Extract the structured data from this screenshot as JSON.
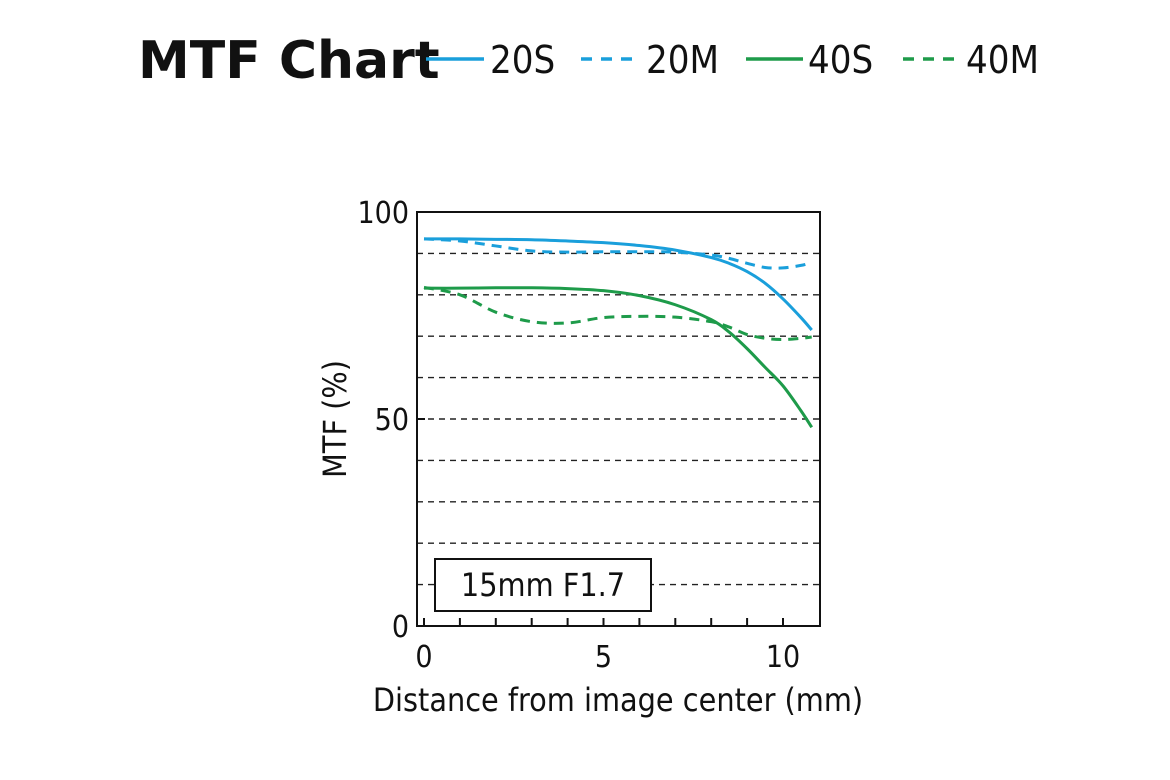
{
  "chart_data": {
    "type": "line",
    "title": "MTF Chart",
    "xlabel": "Distance from image center (mm)",
    "ylabel": "MTF (%)",
    "xlim": [
      0,
      10.8
    ],
    "ylim": [
      0,
      100
    ],
    "xticks": [
      0,
      5,
      10
    ],
    "yticks": [
      0,
      50,
      100
    ],
    "minor_xticks": [
      1,
      2,
      3,
      4,
      6,
      7,
      8,
      9
    ],
    "grid_y": [
      10,
      20,
      30,
      40,
      50,
      60,
      70,
      80,
      90
    ],
    "grid": "horizontal-dashed",
    "legend_position": "top",
    "annotation": "15mm F1.7",
    "series": [
      {
        "name": "20S",
        "color": "#1a9fdb",
        "dashed": false,
        "x": [
          0,
          1,
          2,
          3,
          4,
          5,
          6,
          7,
          8,
          8.5,
          9,
          9.5,
          10,
          10.5,
          10.8
        ],
        "y": [
          93.5,
          93.5,
          93.4,
          93.3,
          93.0,
          92.6,
          91.9,
          90.8,
          89.0,
          87.6,
          85.6,
          82.8,
          79.0,
          74.5,
          71.5
        ]
      },
      {
        "name": "20M",
        "color": "#1a9fdb",
        "dashed": true,
        "x": [
          0,
          1,
          2,
          3,
          4,
          5,
          6,
          7,
          8,
          8.5,
          9,
          9.5,
          10,
          10.5,
          10.8
        ],
        "y": [
          93.5,
          93.0,
          91.8,
          90.6,
          90.3,
          90.4,
          90.4,
          90.3,
          89.6,
          88.8,
          87.6,
          86.6,
          86.5,
          87.1,
          87.8
        ]
      },
      {
        "name": "40S",
        "color": "#1e9b4a",
        "dashed": false,
        "x": [
          0,
          1,
          2,
          3,
          4,
          5,
          6,
          7,
          8,
          8.5,
          9,
          9.5,
          10,
          10.5,
          10.8
        ],
        "y": [
          81.6,
          81.6,
          81.7,
          81.7,
          81.5,
          81.0,
          79.8,
          77.6,
          74.0,
          71.0,
          67.0,
          62.5,
          58.0,
          52.0,
          48.0
        ]
      },
      {
        "name": "40M",
        "color": "#1e9b4a",
        "dashed": true,
        "x": [
          0,
          1,
          2,
          3,
          4,
          5,
          6,
          7,
          8,
          8.5,
          9,
          9.5,
          10,
          10.5,
          10.8
        ],
        "y": [
          81.8,
          80.0,
          75.8,
          73.5,
          73.2,
          74.5,
          74.8,
          74.6,
          73.5,
          72.2,
          70.4,
          69.5,
          69.2,
          69.5,
          69.8
        ]
      }
    ]
  }
}
